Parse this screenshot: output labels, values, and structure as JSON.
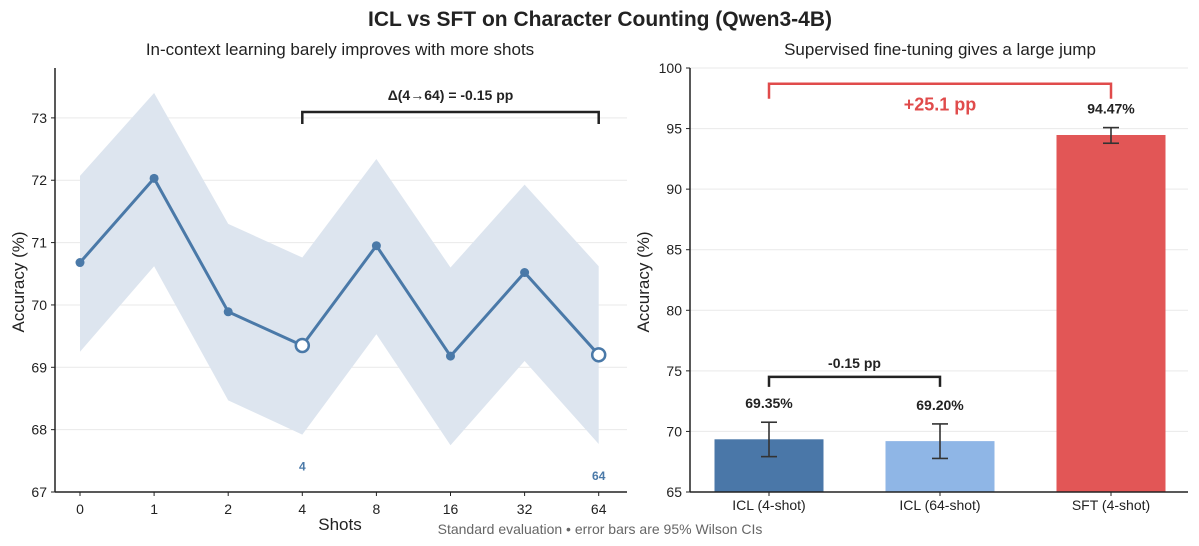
{
  "figure": {
    "title": "ICL vs SFT on Character Counting (Qwen3-4B)",
    "footer": "Standard evaluation • error bars are 95% Wilson CIs"
  },
  "chart_data": [
    {
      "type": "line",
      "title": "In-context learning barely improves with more shots",
      "xlabel": "Shots",
      "ylabel": "Accuracy (%)",
      "categories": [
        "0",
        "1",
        "2",
        "4",
        "8",
        "16",
        "32",
        "64"
      ],
      "values": [
        70.68,
        72.03,
        69.89,
        69.35,
        70.95,
        69.18,
        70.52,
        69.2
      ],
      "ci_lower": [
        69.25,
        70.62,
        68.47,
        67.92,
        69.53,
        67.75,
        69.1,
        67.77
      ],
      "ci_upper": [
        72.07,
        73.4,
        71.3,
        70.76,
        72.34,
        70.6,
        71.93,
        70.62
      ],
      "ylim": [
        67,
        73.8
      ],
      "yticks": [
        67,
        68,
        69,
        70,
        71,
        72,
        73
      ],
      "highlight_points": [
        {
          "index": 3,
          "label": "4"
        },
        {
          "index": 7,
          "label": "64"
        }
      ],
      "bracket": {
        "from_index": 3,
        "to_index": 7,
        "label": "Δ(4→64) = -0.15 pp"
      },
      "grid": true,
      "colors": {
        "line": "#4a79a8",
        "band": "#dde5ef"
      }
    },
    {
      "type": "bar",
      "title": "Supervised fine-tuning gives a large jump",
      "xlabel": "",
      "ylabel": "Accuracy (%)",
      "categories": [
        "ICL (4-shot)",
        "ICL (64-shot)",
        "SFT (4-shot)"
      ],
      "values": [
        69.35,
        69.2,
        94.47
      ],
      "value_labels": [
        "69.35%",
        "69.20%",
        "94.47%"
      ],
      "ci_lower": [
        67.92,
        67.77,
        93.79
      ],
      "ci_upper": [
        70.76,
        70.62,
        95.08
      ],
      "ylim": [
        65,
        100
      ],
      "yticks": [
        65,
        70,
        75,
        80,
        85,
        90,
        95,
        100
      ],
      "colors": [
        "#4a77a8",
        "#8fb6e6",
        "#e25656"
      ],
      "brackets": [
        {
          "from_index": 0,
          "to_index": 1,
          "label": "-0.15 pp",
          "color": "#222222"
        },
        {
          "from_index": 0,
          "to_index": 2,
          "label": "+25.1 pp",
          "color": "#e04b4b"
        }
      ],
      "grid": true
    }
  ]
}
